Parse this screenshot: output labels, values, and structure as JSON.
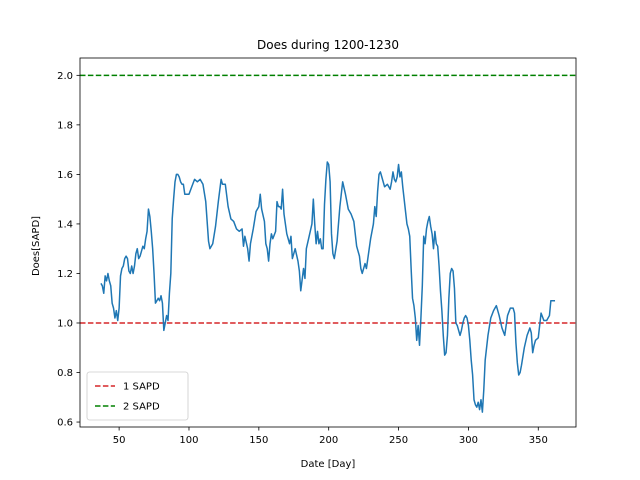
{
  "chart_data": {
    "type": "line",
    "title": "Does during 1200-1230",
    "xlabel": "Date [Day]",
    "ylabel": "Does[SAPD]",
    "xlim": [
      22,
      377
    ],
    "ylim": [
      0.58,
      2.07
    ],
    "xticks": [
      50,
      100,
      150,
      200,
      250,
      300,
      350
    ],
    "yticks": [
      0.6,
      0.8,
      1.0,
      1.2,
      1.4,
      1.6,
      1.8,
      2.0
    ],
    "ytick_labels": [
      "0.6",
      "0.8",
      "1.0",
      "1.2",
      "1.4",
      "1.6",
      "1.8",
      "2.0"
    ],
    "grid": false,
    "legend_position": "lower-left",
    "reference_lines": [
      {
        "name": "1 SAPD",
        "y": 1.0,
        "color": "#d62728",
        "style": "dashed"
      },
      {
        "name": "2 SAPD",
        "y": 2.0,
        "color": "#008000",
        "style": "dashed"
      }
    ],
    "series": [
      {
        "color": "#1f77b4",
        "points": [
          [
            37,
            1.16
          ],
          [
            38,
            1.15
          ],
          [
            39,
            1.12
          ],
          [
            40,
            1.19
          ],
          [
            41,
            1.17
          ],
          [
            42,
            1.2
          ],
          [
            43,
            1.17
          ],
          [
            44,
            1.15
          ],
          [
            45,
            1.08
          ],
          [
            46,
            1.06
          ],
          [
            47,
            1.02
          ],
          [
            48,
            1.05
          ],
          [
            49,
            1.01
          ],
          [
            50,
            1.06
          ],
          [
            51,
            1.19
          ],
          [
            52,
            1.22
          ],
          [
            53,
            1.23
          ],
          [
            54,
            1.26
          ],
          [
            55,
            1.27
          ],
          [
            56,
            1.26
          ],
          [
            57,
            1.21
          ],
          [
            58,
            1.2
          ],
          [
            59,
            1.23
          ],
          [
            60,
            1.2
          ],
          [
            61,
            1.23
          ],
          [
            62,
            1.28
          ],
          [
            63,
            1.3
          ],
          [
            64,
            1.26
          ],
          [
            65,
            1.27
          ],
          [
            66,
            1.29
          ],
          [
            67,
            1.31
          ],
          [
            68,
            1.3
          ],
          [
            69,
            1.34
          ],
          [
            70,
            1.37
          ],
          [
            71,
            1.46
          ],
          [
            72,
            1.43
          ],
          [
            73,
            1.37
          ],
          [
            74,
            1.3
          ],
          [
            75,
            1.2
          ],
          [
            76,
            1.08
          ],
          [
            77,
            1.09
          ],
          [
            78,
            1.1
          ],
          [
            79,
            1.09
          ],
          [
            80,
            1.11
          ],
          [
            81,
            1.08
          ],
          [
            82,
            0.97
          ],
          [
            83,
            1.0
          ],
          [
            84,
            1.03
          ],
          [
            85,
            1.01
          ],
          [
            86,
            1.12
          ],
          [
            87,
            1.2
          ],
          [
            88,
            1.42
          ],
          [
            89,
            1.5
          ],
          [
            90,
            1.57
          ],
          [
            91,
            1.6
          ],
          [
            92,
            1.6
          ],
          [
            93,
            1.59
          ],
          [
            94,
            1.57
          ],
          [
            95,
            1.56
          ],
          [
            96,
            1.56
          ],
          [
            97,
            1.52
          ],
          [
            98,
            1.52
          ],
          [
            99,
            1.52
          ],
          [
            100,
            1.52
          ],
          [
            102,
            1.55
          ],
          [
            104,
            1.58
          ],
          [
            106,
            1.57
          ],
          [
            108,
            1.58
          ],
          [
            110,
            1.56
          ],
          [
            112,
            1.49
          ],
          [
            114,
            1.33
          ],
          [
            115,
            1.3
          ],
          [
            117,
            1.32
          ],
          [
            119,
            1.39
          ],
          [
            121,
            1.49
          ],
          [
            123,
            1.58
          ],
          [
            124,
            1.56
          ],
          [
            126,
            1.56
          ],
          [
            128,
            1.47
          ],
          [
            130,
            1.42
          ],
          [
            132,
            1.41
          ],
          [
            134,
            1.38
          ],
          [
            136,
            1.37
          ],
          [
            138,
            1.38
          ],
          [
            139,
            1.31
          ],
          [
            140,
            1.35
          ],
          [
            142,
            1.3
          ],
          [
            143,
            1.25
          ],
          [
            144,
            1.32
          ],
          [
            146,
            1.38
          ],
          [
            148,
            1.45
          ],
          [
            150,
            1.47
          ],
          [
            151,
            1.52
          ],
          [
            152,
            1.46
          ],
          [
            154,
            1.41
          ],
          [
            155,
            1.32
          ],
          [
            156,
            1.3
          ],
          [
            157,
            1.25
          ],
          [
            158,
            1.32
          ],
          [
            159,
            1.36
          ],
          [
            160,
            1.34
          ],
          [
            162,
            1.37
          ],
          [
            163,
            1.49
          ],
          [
            164,
            1.47
          ],
          [
            165,
            1.47
          ],
          [
            166,
            1.46
          ],
          [
            167,
            1.54
          ],
          [
            168,
            1.44
          ],
          [
            170,
            1.36
          ],
          [
            172,
            1.32
          ],
          [
            173,
            1.35
          ],
          [
            174,
            1.26
          ],
          [
            176,
            1.3
          ],
          [
            178,
            1.25
          ],
          [
            179,
            1.21
          ],
          [
            180,
            1.13
          ],
          [
            182,
            1.22
          ],
          [
            183,
            1.18
          ],
          [
            184,
            1.3
          ],
          [
            186,
            1.35
          ],
          [
            188,
            1.4
          ],
          [
            189,
            1.5
          ],
          [
            190,
            1.4
          ],
          [
            191,
            1.32
          ],
          [
            192,
            1.37
          ],
          [
            193,
            1.32
          ],
          [
            194,
            1.34
          ],
          [
            195,
            1.3
          ],
          [
            196,
            1.3
          ],
          [
            197,
            1.48
          ],
          [
            198,
            1.58
          ],
          [
            199,
            1.65
          ],
          [
            200,
            1.64
          ],
          [
            201,
            1.57
          ],
          [
            202,
            1.36
          ],
          [
            203,
            1.28
          ],
          [
            204,
            1.26
          ],
          [
            206,
            1.33
          ],
          [
            208,
            1.47
          ],
          [
            210,
            1.57
          ],
          [
            212,
            1.52
          ],
          [
            214,
            1.46
          ],
          [
            216,
            1.44
          ],
          [
            218,
            1.41
          ],
          [
            220,
            1.31
          ],
          [
            222,
            1.27
          ],
          [
            223,
            1.22
          ],
          [
            224,
            1.2
          ],
          [
            226,
            1.24
          ],
          [
            227,
            1.22
          ],
          [
            228,
            1.26
          ],
          [
            230,
            1.34
          ],
          [
            232,
            1.4
          ],
          [
            233,
            1.47
          ],
          [
            234,
            1.43
          ],
          [
            235,
            1.53
          ],
          [
            236,
            1.6
          ],
          [
            237,
            1.61
          ],
          [
            238,
            1.59
          ],
          [
            240,
            1.55
          ],
          [
            242,
            1.56
          ],
          [
            244,
            1.54
          ],
          [
            245,
            1.57
          ],
          [
            246,
            1.61
          ],
          [
            247,
            1.58
          ],
          [
            248,
            1.57
          ],
          [
            249,
            1.59
          ],
          [
            250,
            1.64
          ],
          [
            251,
            1.59
          ],
          [
            252,
            1.61
          ],
          [
            253,
            1.55
          ],
          [
            254,
            1.5
          ],
          [
            255,
            1.45
          ],
          [
            256,
            1.4
          ],
          [
            257,
            1.38
          ],
          [
            258,
            1.35
          ],
          [
            259,
            1.22
          ],
          [
            260,
            1.1
          ],
          [
            261,
            1.07
          ],
          [
            262,
            1.02
          ],
          [
            263,
            0.93
          ],
          [
            264,
            0.99
          ],
          [
            265,
            0.91
          ],
          [
            266,
            1.02
          ],
          [
            267,
            1.15
          ],
          [
            268,
            1.35
          ],
          [
            269,
            1.32
          ],
          [
            270,
            1.38
          ],
          [
            271,
            1.41
          ],
          [
            272,
            1.43
          ],
          [
            273,
            1.39
          ],
          [
            274,
            1.36
          ],
          [
            275,
            1.3
          ],
          [
            276,
            1.37
          ],
          [
            277,
            1.32
          ],
          [
            278,
            1.31
          ],
          [
            279,
            1.23
          ],
          [
            280,
            1.13
          ],
          [
            281,
            1.05
          ],
          [
            282,
            0.95
          ],
          [
            283,
            0.87
          ],
          [
            284,
            0.88
          ],
          [
            285,
            0.95
          ],
          [
            286,
            1.1
          ],
          [
            287,
            1.2
          ],
          [
            288,
            1.22
          ],
          [
            289,
            1.21
          ],
          [
            290,
            1.14
          ],
          [
            291,
            1.0
          ],
          [
            292,
            0.99
          ],
          [
            293,
            0.97
          ],
          [
            294,
            0.95
          ],
          [
            295,
            0.97
          ],
          [
            296,
            1.0
          ],
          [
            297,
            1.02
          ],
          [
            298,
            1.03
          ],
          [
            299,
            1.02
          ],
          [
            300,
            0.99
          ],
          [
            301,
            0.93
          ],
          [
            302,
            0.85
          ],
          [
            303,
            0.79
          ],
          [
            304,
            0.69
          ],
          [
            305,
            0.67
          ],
          [
            306,
            0.66
          ],
          [
            307,
            0.68
          ],
          [
            308,
            0.65
          ],
          [
            309,
            0.69
          ],
          [
            310,
            0.64
          ],
          [
            311,
            0.73
          ],
          [
            312,
            0.85
          ],
          [
            314,
            0.95
          ],
          [
            316,
            1.02
          ],
          [
            318,
            1.05
          ],
          [
            320,
            1.07
          ],
          [
            322,
            1.03
          ],
          [
            324,
            0.98
          ],
          [
            326,
            0.95
          ],
          [
            328,
            1.03
          ],
          [
            330,
            1.06
          ],
          [
            331,
            1.06
          ],
          [
            332,
            1.06
          ],
          [
            333,
            1.04
          ],
          [
            334,
            0.92
          ],
          [
            335,
            0.84
          ],
          [
            336,
            0.79
          ],
          [
            337,
            0.8
          ],
          [
            338,
            0.83
          ],
          [
            340,
            0.9
          ],
          [
            342,
            0.95
          ],
          [
            344,
            0.98
          ],
          [
            345,
            0.96
          ],
          [
            346,
            0.88
          ],
          [
            347,
            0.91
          ],
          [
            348,
            0.93
          ],
          [
            350,
            0.94
          ],
          [
            352,
            1.04
          ],
          [
            354,
            1.01
          ],
          [
            356,
            1.01
          ],
          [
            358,
            1.03
          ],
          [
            359,
            1.09
          ],
          [
            362,
            1.09
          ]
        ]
      }
    ]
  }
}
